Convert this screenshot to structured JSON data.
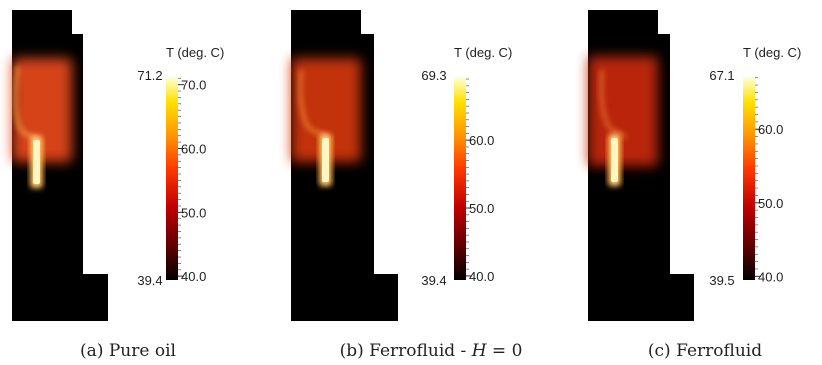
{
  "colorscale": {
    "stops": [
      "#000000",
      "#5a0000",
      "#c00000",
      "#ff3a00",
      "#ff9a00",
      "#ffe200",
      "#ffffd8"
    ]
  },
  "panels": [
    {
      "caption": "(a) Pure oil",
      "legend_title": "T (deg. C)",
      "min_label": "39.4",
      "max_label": "71.2",
      "ticks": [
        {
          "label": "70.0",
          "value": 70.0
        },
        {
          "label": "60.0",
          "value": 60.0
        },
        {
          "label": "50.0",
          "value": 50.0
        },
        {
          "label": "40.0",
          "value": 40.0
        }
      ],
      "range": [
        39.4,
        71.2
      ],
      "field_color": "#e84a1c"
    },
    {
      "caption_prefix": "(b) Ferrofluid - ",
      "caption_var": "H",
      "caption_suffix": " = 0",
      "legend_title": "T (deg. C)",
      "min_label": "39.4",
      "max_label": "69.3",
      "ticks": [
        {
          "label": "60.0",
          "value": 60.0
        },
        {
          "label": "50.0",
          "value": 50.0
        },
        {
          "label": "40.0",
          "value": 40.0
        }
      ],
      "range": [
        39.4,
        69.3
      ],
      "field_color": "#d83810"
    },
    {
      "caption": "(c) Ferrofluid",
      "legend_title": "T (deg. C)",
      "min_label": "39.5",
      "max_label": "67.1",
      "ticks": [
        {
          "label": "60.0",
          "value": 60.0
        },
        {
          "label": "50.0",
          "value": 50.0
        },
        {
          "label": "40.0",
          "value": 40.0
        }
      ],
      "range": [
        39.5,
        67.1
      ],
      "field_color": "#cc2a0c"
    }
  ]
}
